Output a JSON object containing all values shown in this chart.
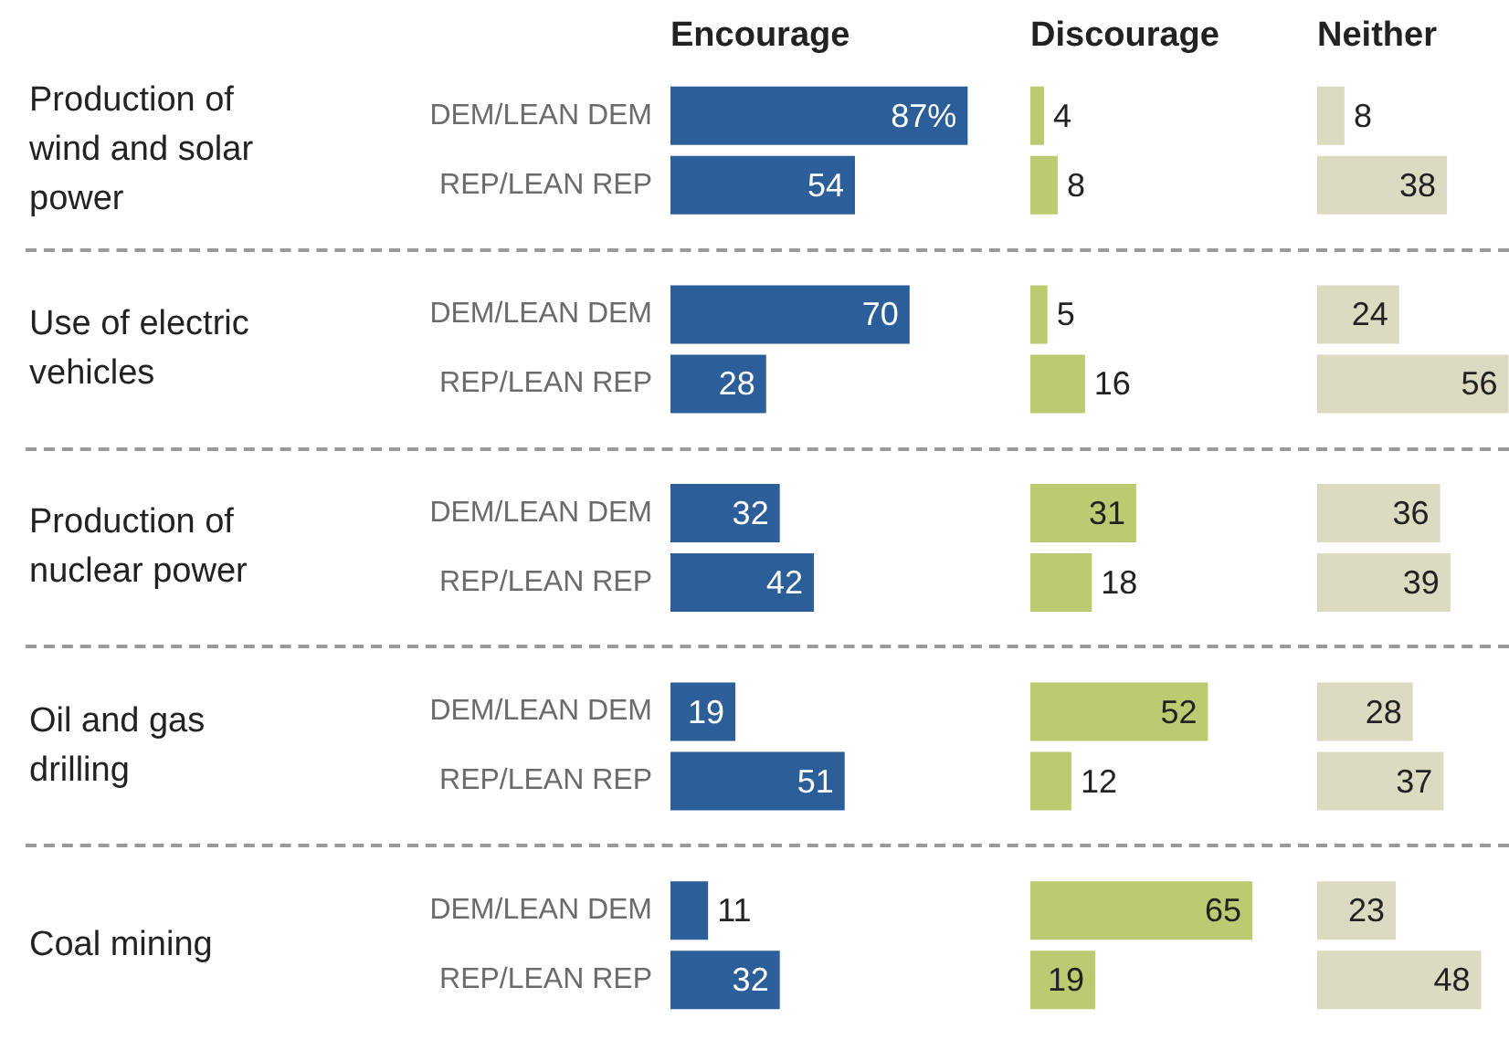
{
  "chart_data": [
    {
      "type": "bar",
      "orientation": "horizontal",
      "title": "Encourage",
      "tick_labels": "y",
      "categories": [
        "Production of wind and solar power",
        "Use of electric vehicles",
        "Production of nuclear power",
        "Oil and gas drilling",
        "Coal mining"
      ],
      "series": [
        {
          "name": "DEM/LEAN DEM",
          "color": "#2c5f9a",
          "values": [
            87,
            70,
            32,
            19,
            11
          ],
          "value_labels": [
            "87%",
            "70",
            "32",
            "19",
            "11"
          ]
        },
        {
          "name": "REP/LEAN REP",
          "color": "#2c5f9a",
          "values": [
            54,
            28,
            42,
            51,
            32
          ],
          "value_labels": [
            "54",
            "28",
            "42",
            "51",
            "32"
          ]
        }
      ]
    },
    {
      "type": "bar",
      "orientation": "horizontal",
      "title": "Discourage",
      "categories": [
        null,
        null,
        null,
        null,
        null
      ],
      "series": [
        {
          "color": "#bccb72",
          "values": [
            4,
            5,
            31,
            52,
            65
          ],
          "value_labels": [
            "4",
            "5",
            "31",
            "52",
            "65"
          ]
        },
        {
          "color": "#bccb72",
          "values": [
            8,
            16,
            18,
            12,
            19
          ],
          "value_labels": [
            "8",
            "16",
            "18",
            "12",
            "19"
          ]
        }
      ]
    },
    {
      "type": "bar",
      "orientation": "horizontal",
      "title": "Neither",
      "categories": [
        null,
        null,
        null,
        null,
        null
      ],
      "series": [
        {
          "color": "#dddac2",
          "values": [
            8,
            24,
            36,
            28,
            23
          ],
          "value_labels": [
            "8",
            "24",
            "36",
            "28",
            "23"
          ]
        },
        {
          "color": "#dddac2",
          "values": [
            38,
            56,
            39,
            37,
            48
          ],
          "value_labels": [
            "38",
            "56",
            "39",
            "37",
            "48"
          ]
        }
      ]
    }
  ]
}
